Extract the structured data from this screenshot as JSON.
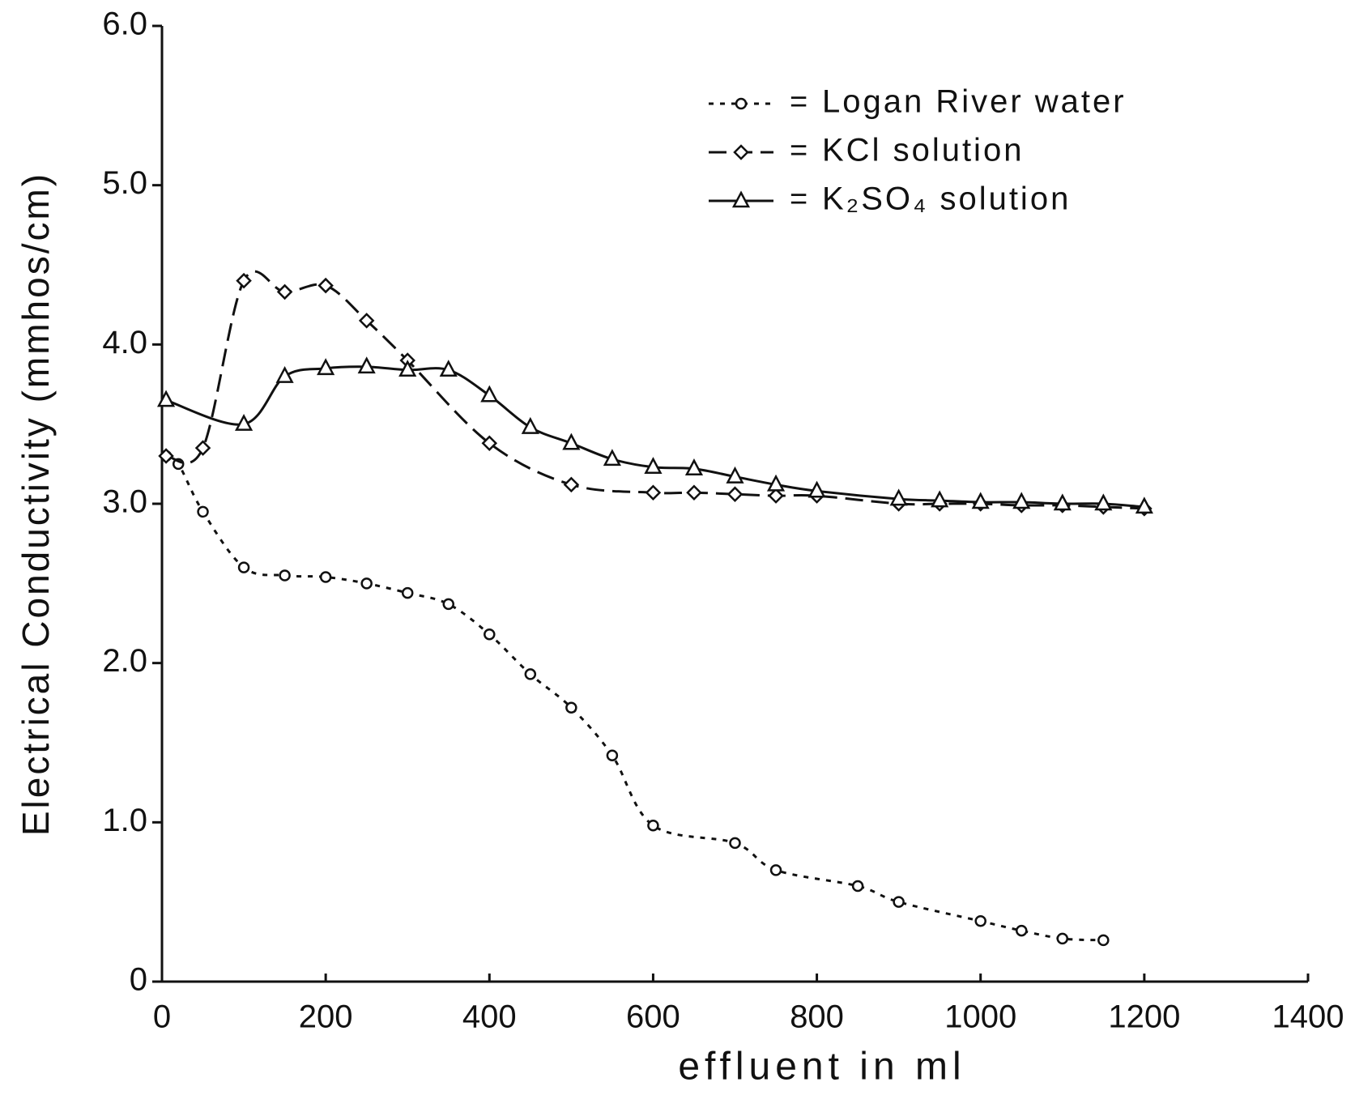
{
  "chart_data": {
    "type": "line",
    "xlabel": "effluent in ml",
    "ylabel": "Electrical Conductivity (mmhos/cm)",
    "xlim": [
      0,
      1400
    ],
    "xticks": [
      0,
      200,
      400,
      600,
      800,
      1000,
      1200,
      1400
    ],
    "ylim": [
      0,
      6
    ],
    "yticks": [
      0,
      {
        "value": 1,
        "label": "1.0"
      },
      {
        "value": 2,
        "label": "2.0"
      },
      {
        "value": 3,
        "label": "3.0"
      },
      {
        "value": 4,
        "label": "4.0"
      },
      {
        "value": 5,
        "label": "5.0"
      },
      {
        "value": 6,
        "label": "6.0"
      }
    ],
    "legend_position": "upper right",
    "legend_separator": "=",
    "series": [
      {
        "name": "Logan River water",
        "color": "#111111",
        "marker": "circle",
        "dash": "6 8",
        "x": [
          5,
          20,
          50,
          100,
          150,
          200,
          250,
          300,
          350,
          400,
          450,
          500,
          550,
          600,
          700,
          750,
          850,
          900,
          1000,
          1050,
          1100,
          1150
        ],
        "values": [
          3.3,
          3.25,
          2.95,
          2.6,
          2.55,
          2.54,
          2.5,
          2.44,
          2.37,
          2.18,
          1.93,
          1.72,
          1.42,
          0.98,
          0.87,
          0.7,
          0.6,
          0.5,
          0.38,
          0.32,
          0.27,
          0.26
        ]
      },
      {
        "name": "KCl solution",
        "color": "#111111",
        "marker": "diamond",
        "dash": "22 10",
        "x": [
          5,
          50,
          100,
          150,
          200,
          250,
          300,
          400,
          500,
          600,
          650,
          700,
          750,
          800,
          900,
          950,
          1000,
          1050,
          1100,
          1150,
          1200
        ],
        "values": [
          3.3,
          3.35,
          4.4,
          4.33,
          4.37,
          4.15,
          3.9,
          3.38,
          3.12,
          3.07,
          3.07,
          3.06,
          3.05,
          3.05,
          3.0,
          3.0,
          3.0,
          2.99,
          2.99,
          2.98,
          2.97
        ]
      },
      {
        "name": "K₂SO₄ solution",
        "color": "#111111",
        "marker": "triangle",
        "dash": "none",
        "x": [
          5,
          100,
          150,
          200,
          250,
          300,
          350,
          400,
          450,
          500,
          550,
          600,
          650,
          700,
          750,
          800,
          900,
          950,
          1000,
          1050,
          1100,
          1150,
          1200
        ],
        "values": [
          3.65,
          3.5,
          3.8,
          3.85,
          3.86,
          3.84,
          3.84,
          3.68,
          3.48,
          3.38,
          3.28,
          3.23,
          3.22,
          3.17,
          3.12,
          3.08,
          3.03,
          3.02,
          3.01,
          3.01,
          3.0,
          3.0,
          2.98
        ]
      }
    ]
  }
}
